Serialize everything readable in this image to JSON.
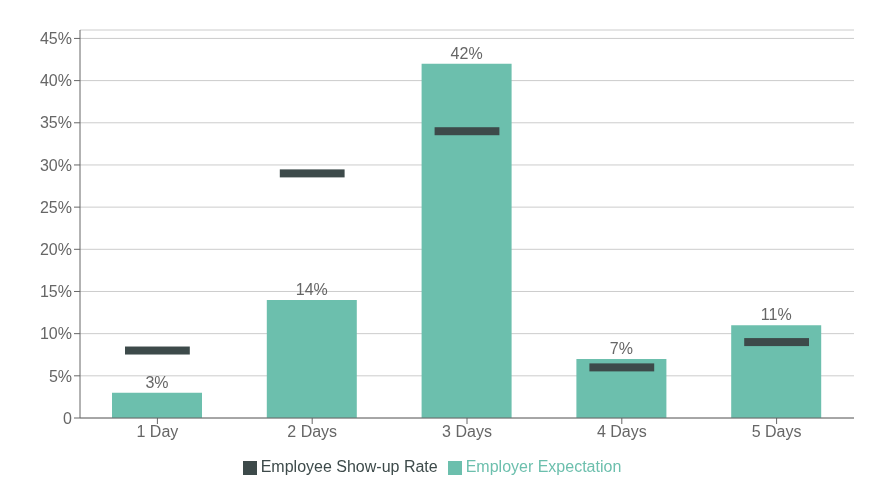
{
  "chart_data": {
    "type": "bar",
    "categories": [
      "1 Day",
      "2 Days",
      "3 Days",
      "4 Days",
      "5 Days"
    ],
    "series": [
      {
        "name": "Employer Expectation",
        "type": "bar",
        "color": "#6CBFAD",
        "values": [
          3,
          14,
          42,
          7,
          11
        ],
        "value_labels": [
          "3%",
          "14%",
          "42%",
          "7%",
          "11%"
        ]
      },
      {
        "name": "Employee Show-up Rate",
        "type": "scatter",
        "marker": "dash",
        "color": "#3D4A4A",
        "values": [
          8,
          29,
          34,
          6,
          9
        ]
      }
    ],
    "ylim": [
      0,
      46
    ],
    "yticks": [
      0,
      {
        "value": 5,
        "label": "5%"
      },
      {
        "value": 10,
        "label": "10%"
      },
      {
        "value": 15,
        "label": "15%"
      },
      {
        "value": 20,
        "label": "20%"
      },
      {
        "value": 25,
        "label": "25%"
      },
      {
        "value": 30,
        "label": "30%"
      },
      {
        "value": 35,
        "label": "35%"
      },
      {
        "value": 40,
        "label": "40%"
      },
      {
        "value": 45,
        "label": "45%"
      }
    ],
    "grid": true
  }
}
